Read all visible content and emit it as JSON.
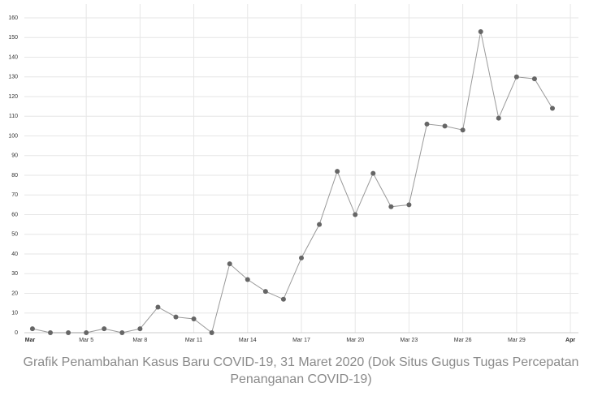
{
  "chart_data": {
    "type": "line",
    "caption": "Grafik Penambahan Kasus Baru COVID-19, 31 Maret 2020 (Dok Situs Gugus Tugas Percepatan Penanganan COVID-19)",
    "x": [
      2,
      3,
      4,
      5,
      6,
      7,
      8,
      9,
      10,
      11,
      12,
      13,
      14,
      15,
      16,
      17,
      18,
      19,
      20,
      21,
      22,
      23,
      24,
      25,
      26,
      27,
      28,
      29,
      30,
      31
    ],
    "series": [
      {
        "color": "#999999",
        "values": [
          2,
          0,
          0,
          0,
          2,
          0,
          2,
          13,
          8,
          7,
          0,
          35,
          27,
          21,
          17,
          38,
          55,
          82,
          60,
          81,
          64,
          65,
          106,
          105,
          103,
          153,
          109,
          130,
          129,
          114
        ]
      }
    ],
    "xlim": [
      1.55,
      32.45
    ],
    "xticks": [
      {
        "value": 1,
        "label": "Mar"
      },
      {
        "value": 5,
        "label": "Mar 5"
      },
      {
        "value": 8,
        "label": "Mar 8"
      },
      {
        "value": 11,
        "label": "Mar 11"
      },
      {
        "value": 14,
        "label": "Mar 14"
      },
      {
        "value": 17,
        "label": "Mar 17"
      },
      {
        "value": 20,
        "label": "Mar 20"
      },
      {
        "value": 23,
        "label": "Mar 23"
      },
      {
        "value": 26,
        "label": "Mar 26"
      },
      {
        "value": 29,
        "label": "Mar 29"
      },
      {
        "value": 32,
        "label": "Apr"
      }
    ],
    "ylim": [
      0,
      167
    ],
    "yticks": [
      0,
      10,
      20,
      30,
      40,
      50,
      60,
      70,
      80,
      90,
      100,
      110,
      120,
      130,
      140,
      150,
      160
    ],
    "grid": true,
    "marker_color": "#666666"
  }
}
